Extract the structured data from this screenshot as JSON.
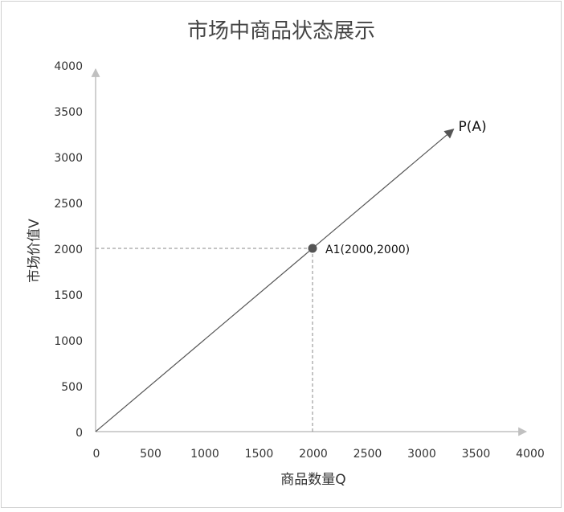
{
  "chart_data": {
    "type": "line",
    "title": "市场中商品状态展示",
    "xlabel": "商品数量Q",
    "ylabel": "市场价值V",
    "xlim": [
      0,
      4000
    ],
    "ylim": [
      0,
      4000
    ],
    "xticks": [
      "0",
      "500",
      "1000",
      "1500",
      "2000",
      "2500",
      "3000",
      "3500",
      "4000"
    ],
    "yticks": [
      "0",
      "500",
      "1000",
      "1500",
      "2000",
      "2500",
      "3000",
      "3500",
      "4000"
    ],
    "grid": false,
    "series": [
      {
        "name": "P(A)",
        "x": [
          0,
          3300
        ],
        "y": [
          0,
          3300
        ],
        "arrow": true,
        "color": "#555555"
      }
    ],
    "points": [
      {
        "label": "A1(2000,2000)",
        "x": 2000,
        "y": 2000,
        "color": "#555555"
      }
    ]
  }
}
